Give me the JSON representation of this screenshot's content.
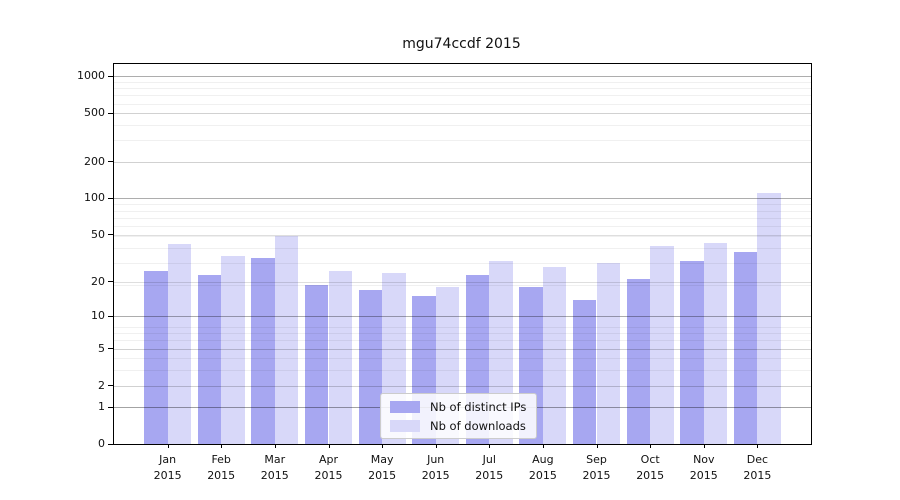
{
  "chart_data": {
    "type": "bar",
    "title": "mgu74ccdf 2015",
    "categories": [
      "Jan",
      "Feb",
      "Mar",
      "Apr",
      "May",
      "Jun",
      "Jul",
      "Aug",
      "Sep",
      "Oct",
      "Nov",
      "Dec"
    ],
    "year": "2015",
    "series": [
      {
        "name": "Nb of distinct IPs",
        "color": "#a7a7f1",
        "values": [
          25,
          23,
          32,
          19,
          17,
          15,
          23,
          18,
          14,
          21,
          30,
          36
        ]
      },
      {
        "name": "Nb of downloads",
        "color": "#d8d8f9",
        "values": [
          42,
          33,
          49,
          25,
          24,
          18,
          30,
          27,
          29,
          40,
          43,
          110
        ]
      }
    ],
    "yticks": [
      0,
      1,
      2,
      5,
      10,
      20,
      50,
      100,
      200,
      500,
      1000
    ],
    "ylim": [
      0,
      1258
    ],
    "yscale": "log1p",
    "xlabel": "",
    "ylabel": "",
    "grid": true,
    "grid_above_bars": true,
    "legend_position": "lower center"
  }
}
